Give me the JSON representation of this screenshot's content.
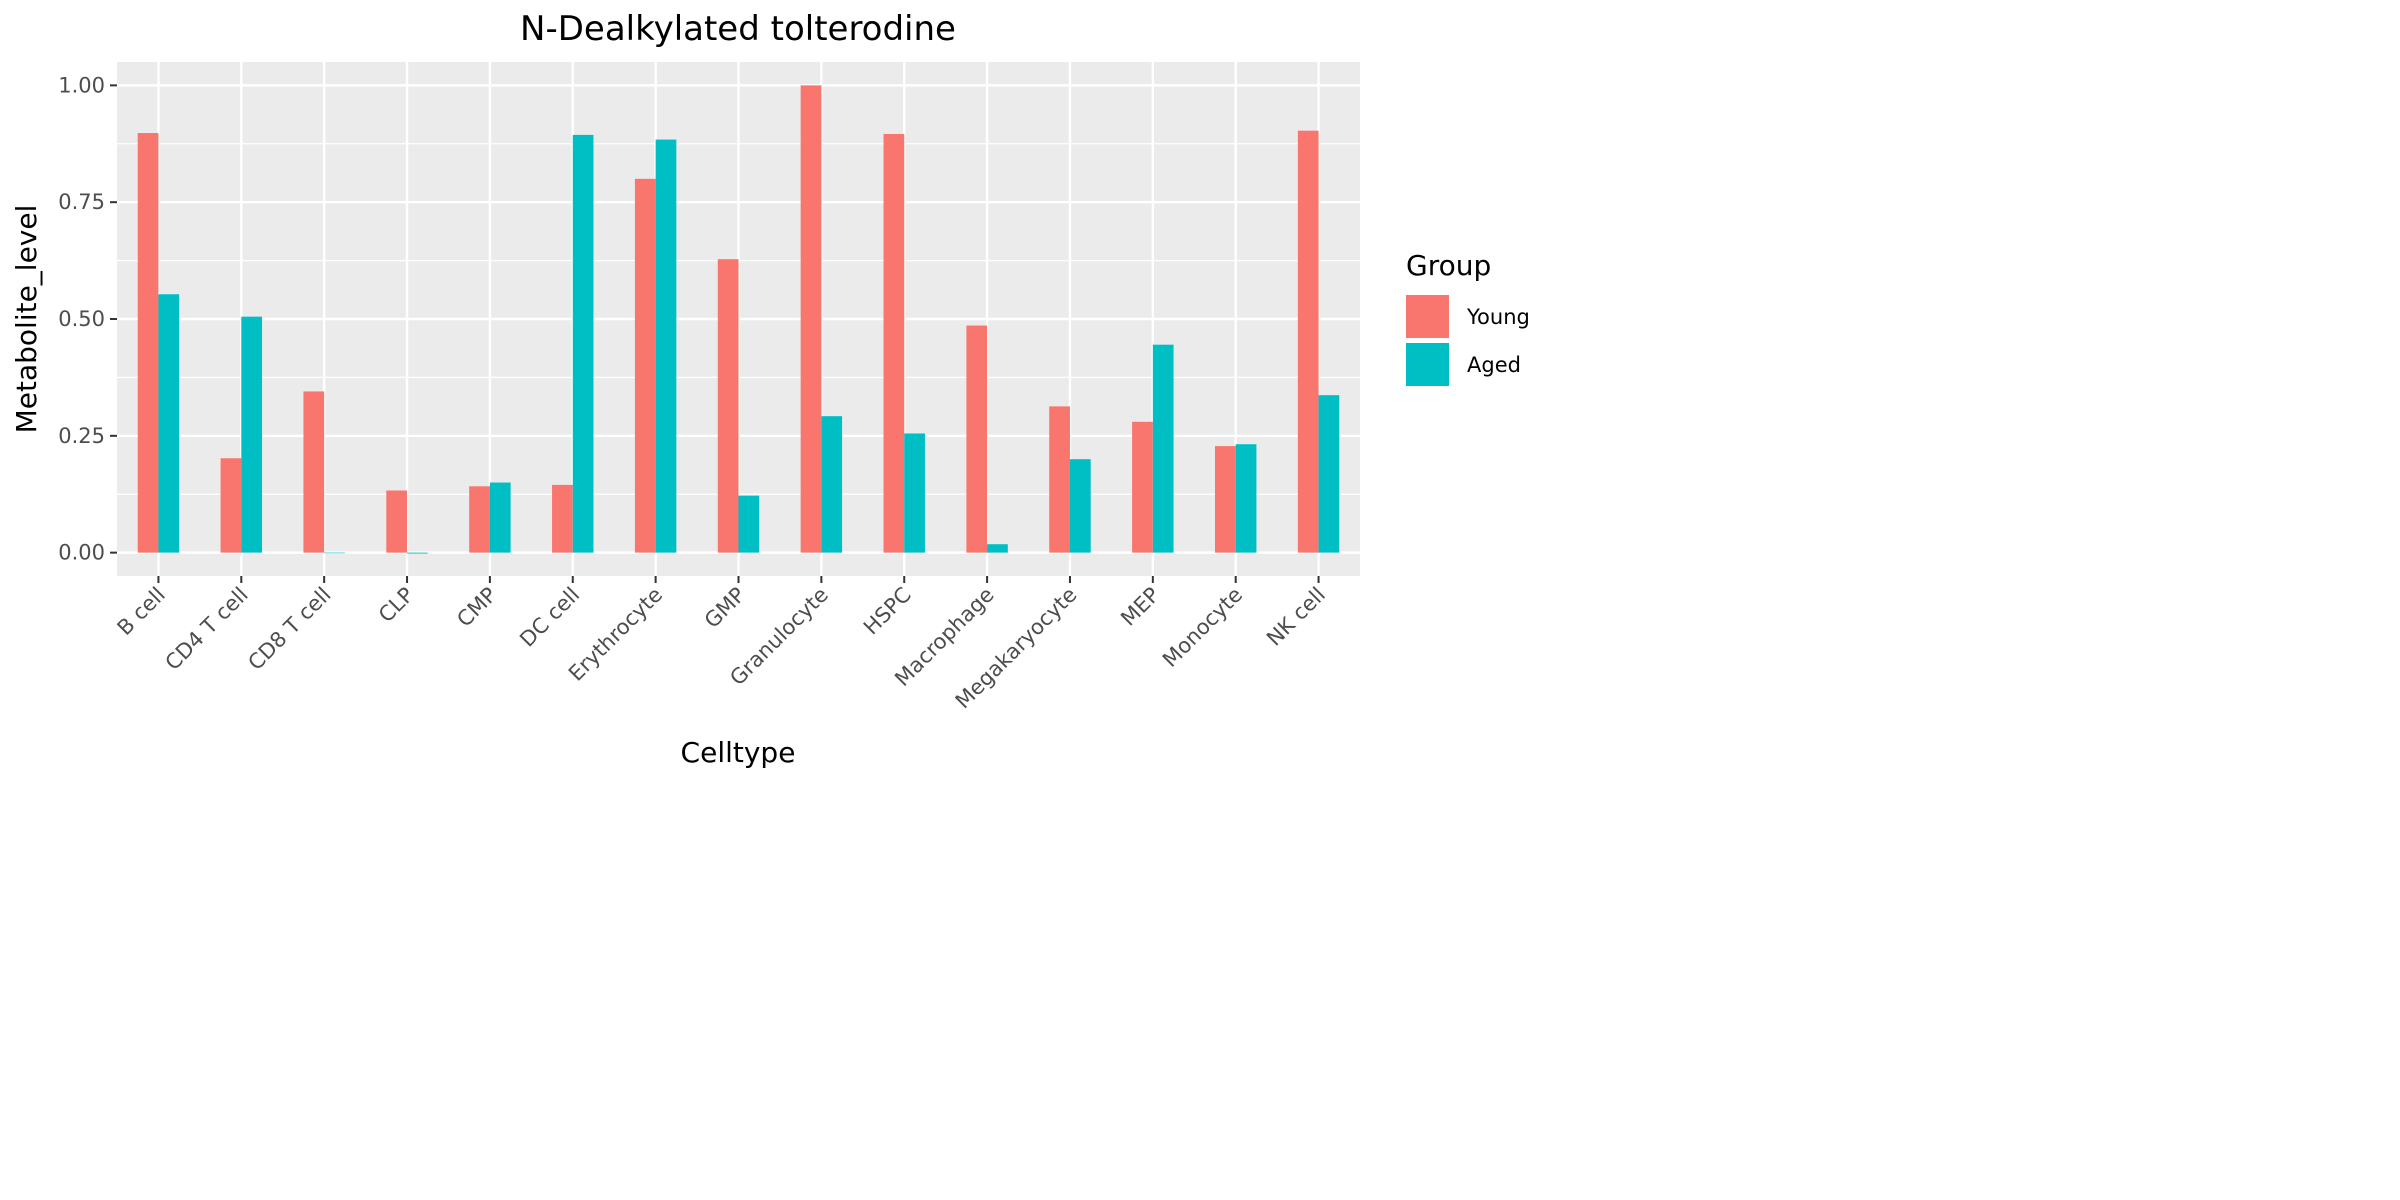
{
  "chart_data": {
    "type": "bar",
    "title": "N-Dealkylated tolterodine",
    "xlabel": "Celltype",
    "ylabel": "Metabolite_level",
    "ylim": [
      -0.05,
      1.05
    ],
    "yticks": [
      "0.00",
      "0.25",
      "0.50",
      "0.75",
      "1.00"
    ],
    "categories": [
      "B cell",
      "CD4 T cell",
      "CD8 T cell",
      "CLP",
      "CMP",
      "DC cell",
      "Erythrocyte",
      "GMP",
      "Granulocyte",
      "HSPC",
      "Macrophage",
      "Megakaryocyte",
      "MEP",
      "Monocyte",
      "NK cell"
    ],
    "series": [
      {
        "name": "Young",
        "color": "#F8766D",
        "values": [
          0.898,
          0.202,
          0.345,
          0.133,
          0.142,
          0.145,
          0.8,
          0.628,
          1.0,
          0.896,
          0.486,
          0.313,
          0.28,
          0.228,
          0.903
        ]
      },
      {
        "name": "Aged",
        "color": "#00BFC4",
        "values": [
          0.553,
          0.505,
          0.0,
          -0.002,
          0.15,
          0.894,
          0.884,
          0.122,
          0.292,
          0.255,
          0.018,
          0.2,
          0.445,
          0.232,
          0.337
        ]
      }
    ],
    "grid": true,
    "legend": {
      "title": "Group",
      "position": "right"
    }
  }
}
